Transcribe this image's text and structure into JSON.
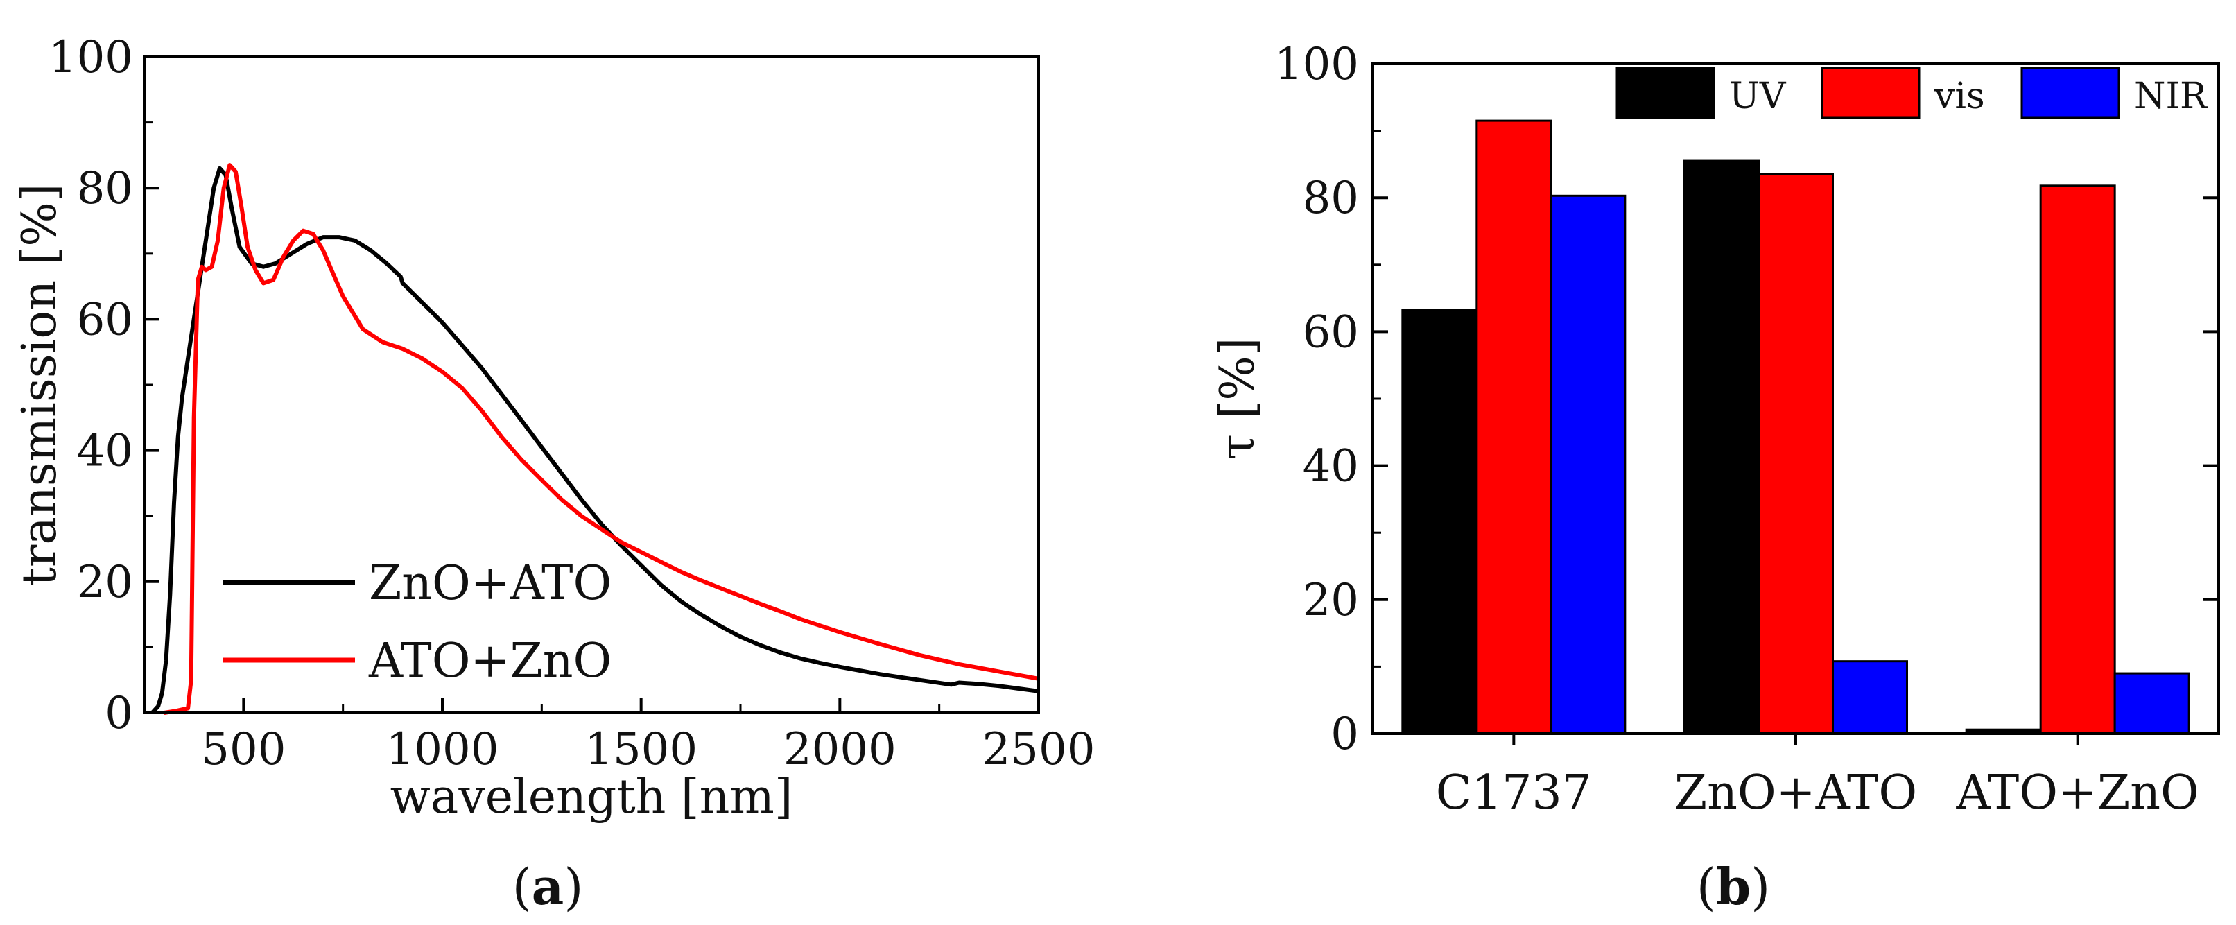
{
  "chart_data": [
    {
      "type": "line",
      "panel": "(a)",
      "panel_letter": "a",
      "xlabel": "wavelength [nm]",
      "ylabel": "transmission [%]",
      "xlim": [
        250,
        2500
      ],
      "ylim": [
        0,
        100
      ],
      "xticks": [
        500,
        1000,
        1500,
        2000,
        2500
      ],
      "yticks": [
        0,
        20,
        40,
        60,
        80,
        100
      ],
      "legend_position": "lower-left",
      "series": [
        {
          "name": "ZnO+ATO",
          "color": "#000000",
          "x": [
            270,
            285,
            295,
            305,
            315,
            325,
            335,
            345,
            355,
            365,
            380,
            395,
            410,
            425,
            440,
            455,
            470,
            490,
            520,
            550,
            580,
            620,
            660,
            700,
            740,
            780,
            820,
            860,
            895,
            900,
            950,
            1000,
            1050,
            1100,
            1150,
            1200,
            1250,
            1300,
            1350,
            1400,
            1450,
            1500,
            1550,
            1600,
            1650,
            1700,
            1750,
            1800,
            1850,
            1900,
            1950,
            2000,
            2100,
            2200,
            2280,
            2300,
            2350,
            2400,
            2450,
            2500
          ],
          "y": [
            0,
            1,
            3,
            8,
            18,
            32,
            42,
            48,
            52,
            56,
            62,
            68,
            74,
            80,
            83,
            82,
            77,
            71,
            68.5,
            68,
            68.5,
            70,
            71.5,
            72.5,
            72.5,
            72,
            70.5,
            68.5,
            66.5,
            65.5,
            62.5,
            59.5,
            56,
            52.5,
            48.5,
            44.5,
            40.5,
            36.5,
            32.5,
            28.8,
            25.5,
            22.5,
            19.5,
            17,
            15,
            13.2,
            11.6,
            10.3,
            9.2,
            8.3,
            7.6,
            7,
            5.9,
            5,
            4.3,
            4.6,
            4.4,
            4.1,
            3.7,
            3.3
          ]
        },
        {
          "name": "ATO+ZnO",
          "color": "#ff0000",
          "x": [
            300,
            330,
            360,
            368,
            375,
            385,
            395,
            405,
            420,
            435,
            450,
            465,
            480,
            495,
            510,
            530,
            550,
            575,
            600,
            625,
            650,
            675,
            700,
            725,
            750,
            775,
            800,
            850,
            900,
            950,
            1000,
            1050,
            1100,
            1150,
            1200,
            1250,
            1300,
            1350,
            1400,
            1450,
            1500,
            1550,
            1600,
            1650,
            1700,
            1750,
            1800,
            1850,
            1900,
            1950,
            2000,
            2100,
            2200,
            2300,
            2400,
            2500
          ],
          "y": [
            0,
            0.3,
            0.7,
            5,
            45,
            66,
            68,
            67.5,
            68,
            72,
            80,
            83.5,
            82.5,
            77,
            71,
            67.5,
            65.5,
            66,
            69.5,
            72,
            73.5,
            73,
            70.5,
            67,
            63.5,
            61,
            58.5,
            56.5,
            55.5,
            54,
            52,
            49.5,
            46,
            42,
            38.5,
            35.5,
            32.5,
            30,
            28,
            26,
            24.5,
            23,
            21.5,
            20.2,
            19,
            17.8,
            16.6,
            15.5,
            14.3,
            13.3,
            12.3,
            10.5,
            8.8,
            7.4,
            6.3,
            5.2
          ]
        }
      ]
    },
    {
      "type": "bar",
      "panel": "(b)",
      "panel_letter": "b",
      "ylabel": "τ [%]",
      "xlabel": "",
      "ylim": [
        0,
        100
      ],
      "yticks": [
        0,
        20,
        40,
        60,
        80,
        100
      ],
      "legend_position": "top",
      "categories": [
        "C1737",
        "ZnO+ATO",
        "ATO+ZnO"
      ],
      "series": [
        {
          "name": "UV",
          "color": "#000000",
          "values": [
            63.2,
            85.5,
            0.6
          ]
        },
        {
          "name": "vis",
          "color": "#ff0000",
          "values": [
            91.5,
            83.5,
            81.8
          ]
        },
        {
          "name": "NIR",
          "color": "#0000ff",
          "values": [
            80.3,
            10.8,
            9.0
          ]
        }
      ]
    }
  ]
}
